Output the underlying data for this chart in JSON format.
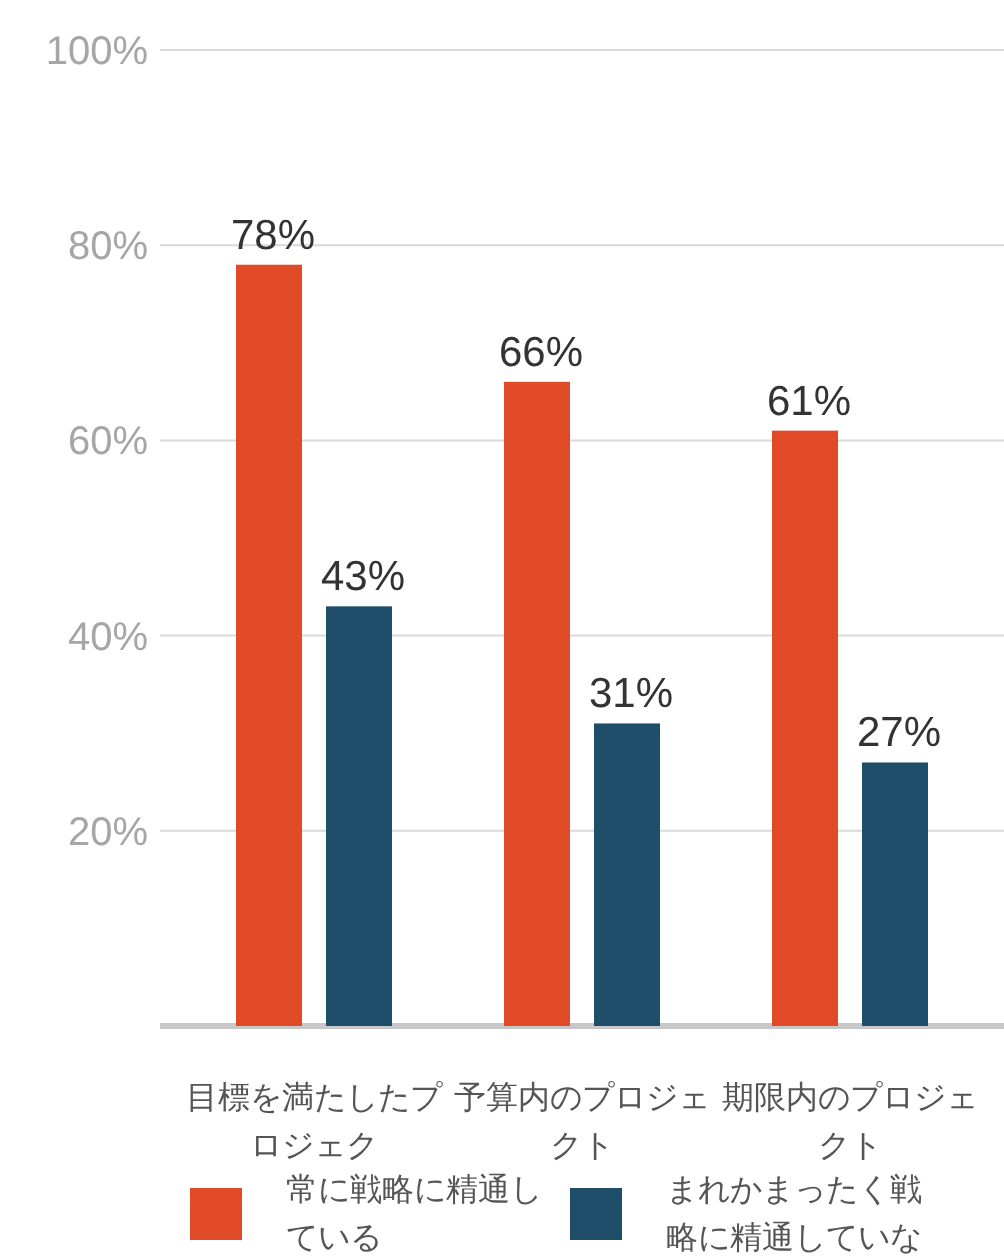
{
  "chart_data": {
    "type": "bar",
    "categories": [
      "目標を満たしたプロジェク",
      "予算内のプロジェクト",
      "期限内のプロジェクト"
    ],
    "series": [
      {
        "name": "常に戦略に精通している",
        "color": "#e04a27",
        "values": [
          78,
          66,
          61
        ]
      },
      {
        "name": "まれかまったく戦略に精通していな",
        "color": "#1f4e6b",
        "values": [
          43,
          31,
          27
        ]
      }
    ],
    "ylim": [
      0,
      100
    ],
    "yticks": [
      {
        "value": 20,
        "label": "20%"
      },
      {
        "value": 40,
        "label": "40%"
      },
      {
        "value": 60,
        "label": "60%"
      },
      {
        "value": 80,
        "label": "80%"
      },
      {
        "value": 100,
        "label": "100%"
      }
    ],
    "value_labels": [
      [
        "78%",
        "66%",
        "61%"
      ],
      [
        "43%",
        "31%",
        "27%"
      ]
    ],
    "grid": "y",
    "legend": "bottom"
  }
}
